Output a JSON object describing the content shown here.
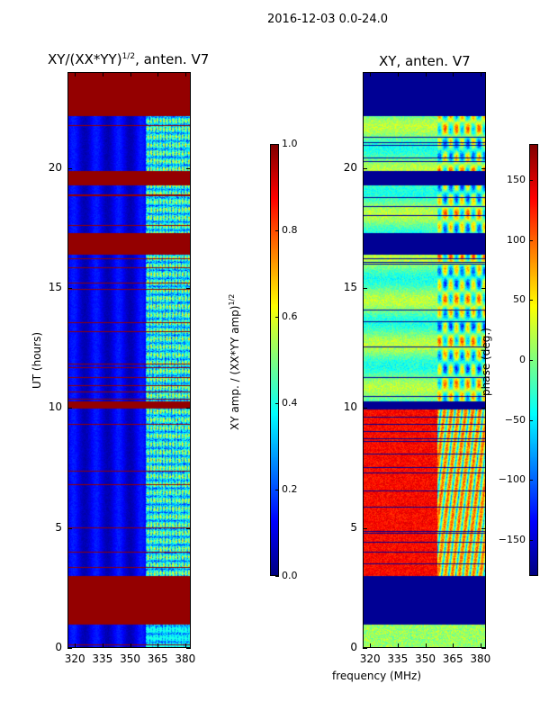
{
  "suptitle": "2016-12-03 0.0-24.0",
  "chart_data": [
    {
      "type": "heatmap",
      "title": "XY/(XX*YY)^{1/2}, anten. V7",
      "title_main": "XY/(XX*YY)",
      "title_exp": "1/2",
      "title_tail": ", anten. V7",
      "xlabel": "",
      "ylabel": "UT (hours)",
      "xlim": [
        316,
        383
      ],
      "ylim": [
        0,
        24
      ],
      "xticks": [
        320,
        335,
        350,
        365,
        380
      ],
      "yticks": [
        0,
        5,
        10,
        15,
        20
      ],
      "xtick_labels": [
        "320",
        "335",
        "350",
        "365",
        "380"
      ],
      "ytick_labels": [
        "0",
        "5",
        "10",
        "15",
        "20"
      ],
      "colorbar": {
        "label": "XY amp. / (XX*YY amp)^{1/2}",
        "label_main": "XY amp. / (XX*YY amp)",
        "label_exp": "1/2",
        "range": [
          0.0,
          1.0
        ],
        "ticks": [
          "0.0",
          "0.2",
          "0.4",
          "0.6",
          "0.8",
          "1.0"
        ],
        "tick_values": [
          0.0,
          0.2,
          0.4,
          0.6,
          0.8,
          1.0
        ]
      },
      "flagged_intervals_hours": [
        [
          22.2,
          24.0
        ],
        [
          19.3,
          19.9
        ],
        [
          16.4,
          17.3
        ],
        [
          10.0,
          10.3
        ],
        [
          1.0,
          3.0
        ]
      ]
    },
    {
      "type": "heatmap",
      "title": "XY, anten. V7",
      "xlabel": "frequency (MHz)",
      "ylabel": "",
      "xlim": [
        316,
        383
      ],
      "ylim": [
        0,
        24
      ],
      "xticks": [
        320,
        335,
        350,
        365,
        380
      ],
      "yticks": [
        0,
        5,
        10,
        15,
        20
      ],
      "xtick_labels": [
        "320",
        "335",
        "350",
        "365",
        "380"
      ],
      "ytick_labels": [
        "0",
        "5",
        "10",
        "15",
        "20"
      ],
      "colorbar": {
        "label": "phase (deg.)",
        "range": [
          -180,
          180
        ],
        "ticks": [
          "−150",
          "−100",
          "−50",
          "0",
          "50",
          "100",
          "150"
        ],
        "tick_values": [
          -150,
          -100,
          -50,
          0,
          50,
          100,
          150
        ]
      }
    }
  ]
}
